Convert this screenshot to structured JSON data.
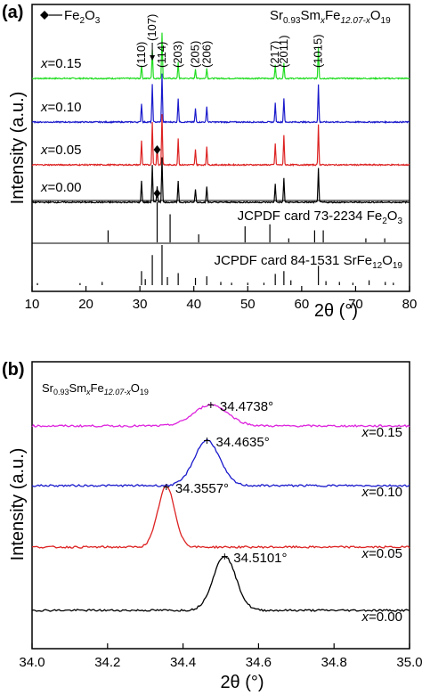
{
  "chart_data": [
    {
      "type": "line",
      "panel_label": "(a)",
      "xlabel": "2θ (°)",
      "ylabel": "Intensity (a.u.)",
      "xlim": [
        10,
        80
      ],
      "xticks": [
        10,
        20,
        30,
        40,
        50,
        60,
        70,
        80
      ],
      "title_formula": {
        "p1": "Sr",
        "s1": "0.93",
        "p2": "Sm",
        "s2": "x",
        "p3": "Fe",
        "s3": "12.07-x",
        "p4": "O",
        "s4": "19"
      },
      "legend": {
        "symbol": "diamond",
        "text": "Fe",
        "sub": "2",
        "text2": "O",
        "sub2": "3"
      },
      "peak_labels": [
        "(110)",
        "(107)",
        "(114)",
        "(203)",
        "(205)",
        "(206)",
        "(217)",
        "(2011)",
        "(1015)"
      ],
      "peak_positions": [
        30.3,
        32.3,
        34.1,
        37.1,
        40.3,
        42.4,
        55.1,
        56.7,
        63.1
      ],
      "fe2o3_marker_positions": [
        33.2,
        33.2
      ],
      "series": [
        {
          "name": "x=0.15",
          "label_x": "x",
          "label_val": "=0.15",
          "color": "#22dd22",
          "peaks": [
            [
              30.3,
              0.25
            ],
            [
              32.3,
              0.55
            ],
            [
              34.1,
              0.85
            ],
            [
              37.1,
              0.3
            ],
            [
              40.3,
              0.18
            ],
            [
              42.4,
              0.2
            ],
            [
              55.1,
              0.25
            ],
            [
              56.7,
              0.3
            ],
            [
              63.1,
              0.6
            ]
          ]
        },
        {
          "name": "x=0.10",
          "label_x": "x",
          "label_val": "=0.10",
          "color": "#1a1acc",
          "peaks": [
            [
              30.3,
              0.35
            ],
            [
              32.3,
              0.7
            ],
            [
              34.1,
              0.9
            ],
            [
              37.1,
              0.45
            ],
            [
              40.3,
              0.25
            ],
            [
              42.4,
              0.3
            ],
            [
              55.1,
              0.35
            ],
            [
              56.7,
              0.45
            ],
            [
              63.1,
              0.7
            ]
          ]
        },
        {
          "name": "x=0.05",
          "label_x": "x",
          "label_val": "=0.05",
          "color": "#dd2222",
          "peaks": [
            [
              30.3,
              0.45
            ],
            [
              32.3,
              0.8
            ],
            [
              33.2,
              0.35
            ],
            [
              34.1,
              0.95
            ],
            [
              37.1,
              0.5
            ],
            [
              40.3,
              0.3
            ],
            [
              42.4,
              0.35
            ],
            [
              55.1,
              0.4
            ],
            [
              56.7,
              0.55
            ],
            [
              63.1,
              0.75
            ]
          ]
        },
        {
          "name": "x=0.00",
          "label_x": "x",
          "label_val": "=0.00",
          "color": "#000000",
          "peaks": [
            [
              30.3,
              0.4
            ],
            [
              32.3,
              0.7
            ],
            [
              33.2,
              0.3
            ],
            [
              34.1,
              0.85
            ],
            [
              37.1,
              0.4
            ],
            [
              40.3,
              0.25
            ],
            [
              42.4,
              0.3
            ],
            [
              55.1,
              0.35
            ],
            [
              56.7,
              0.45
            ],
            [
              63.1,
              0.65
            ]
          ]
        }
      ],
      "references": [
        {
          "name": "JCPDF card 73-2234 Fe2O3",
          "label": "JCPDF card 73-2234 Fe",
          "sub": "2",
          "label2": "O",
          "sub2": "3",
          "sticks": [
            [
              24.1,
              0.3
            ],
            [
              33.2,
              1.0
            ],
            [
              35.6,
              0.7
            ],
            [
              40.9,
              0.2
            ],
            [
              49.5,
              0.4
            ],
            [
              54.1,
              0.45
            ],
            [
              57.6,
              0.1
            ],
            [
              62.4,
              0.3
            ],
            [
              64.0,
              0.3
            ],
            [
              71.9,
              0.1
            ],
            [
              75.4,
              0.1
            ]
          ]
        },
        {
          "name": "JCPDF card 84-1531 SrFe12O19",
          "label": "JCPDF card 84-1531 SrFe",
          "sub": "12",
          "label2": "O",
          "sub2": "19",
          "sticks": [
            [
              11.0,
              0.05
            ],
            [
              18.9,
              0.05
            ],
            [
              23.0,
              0.08
            ],
            [
              30.3,
              0.35
            ],
            [
              31.0,
              0.15
            ],
            [
              32.3,
              0.75
            ],
            [
              34.1,
              1.0
            ],
            [
              35.1,
              0.2
            ],
            [
              37.1,
              0.3
            ],
            [
              40.3,
              0.18
            ],
            [
              42.4,
              0.22
            ],
            [
              45.0,
              0.08
            ],
            [
              47.0,
              0.06
            ],
            [
              50.0,
              0.06
            ],
            [
              53.0,
              0.06
            ],
            [
              55.1,
              0.28
            ],
            [
              56.7,
              0.35
            ],
            [
              58.0,
              0.12
            ],
            [
              63.1,
              0.48
            ],
            [
              64.5,
              0.1
            ],
            [
              67.0,
              0.08
            ],
            [
              69.5,
              0.06
            ],
            [
              72.5,
              0.12
            ],
            [
              75.5,
              0.08
            ],
            [
              77.0,
              0.06
            ]
          ]
        }
      ]
    },
    {
      "type": "line",
      "panel_label": "(b)",
      "xlabel": "2θ (°)",
      "ylabel": "Intensity (a.u.)",
      "xlim": [
        34.0,
        35.0
      ],
      "xticks": [
        "34.0",
        "34.2",
        "34.4",
        "34.6",
        "34.8",
        "35.0"
      ],
      "title_formula": {
        "p1": "Sr",
        "s1": "0.93",
        "p2": "Sm",
        "s2": "x",
        "p3": "Fe",
        "s3": "12.07-x",
        "p4": "O",
        "s4": "19"
      },
      "series": [
        {
          "name": "x=0.15",
          "label_x": "x",
          "label_val": "=0.15",
          "color": "#dd22dd",
          "peak": 34.4738,
          "peak_label": "34.4738°",
          "width": 0.06,
          "height": 0.35
        },
        {
          "name": "x=0.10",
          "label_x": "x",
          "label_val": "=0.10",
          "color": "#1a1acc",
          "peak": 34.4635,
          "peak_label": "34.4635°",
          "width": 0.045,
          "height": 0.75
        },
        {
          "name": "x=0.05",
          "label_x": "x",
          "label_val": "=0.05",
          "color": "#dd2222",
          "peak": 34.3557,
          "peak_label": "34.3557°",
          "width": 0.03,
          "height": 1.0
        },
        {
          "name": "x=0.00",
          "label_x": "x",
          "label_val": "=0.00",
          "color": "#000000",
          "peak": 34.5101,
          "peak_label": "34.5101°",
          "width": 0.04,
          "height": 0.9
        }
      ]
    }
  ]
}
